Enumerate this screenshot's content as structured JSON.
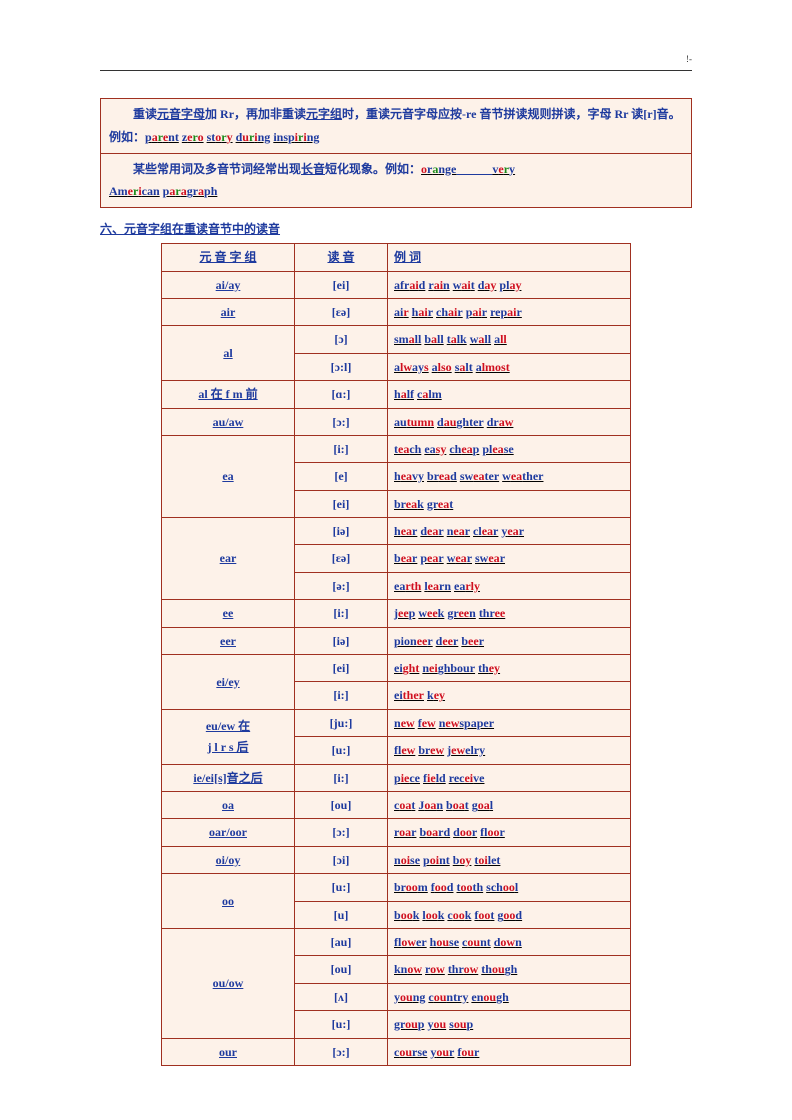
{
  "header_mark": "!-",
  "box": {
    "row1": {
      "prefix_indent": "　　",
      "t1": "重读",
      "t2": "元音字母",
      "t3": "加 Rr，再加非重读",
      "t4": "元字组",
      "t5": "时，重读元音字母应按-re 音节拼读规则拼读，字母 Rr 读[r]音。例如：",
      "ex": [
        [
          "p",
          "a",
          "r",
          "e",
          "nt"
        ],
        [
          " "
        ],
        [
          "z",
          "e",
          "r",
          "o"
        ],
        [
          " "
        ],
        [
          "st",
          "o",
          "r",
          "y"
        ],
        [
          " "
        ],
        [
          "d",
          "u",
          "r",
          "i",
          "ng"
        ],
        [
          " "
        ],
        [
          "insp",
          "i",
          "r",
          "i",
          "ng"
        ]
      ]
    },
    "row2": {
      "prefix_indent": "　　",
      "t1": "某些常用词及多音节词经常出现",
      "t2": "长音",
      "t3": "短化现象。例如：",
      "ex": [
        [
          "o",
          "r",
          "a",
          "nge"
        ],
        [
          "　　　"
        ],
        [
          "v",
          "e",
          "r",
          "y"
        ]
      ],
      "ex2": [
        [
          "Am",
          "e",
          "r",
          "i",
          "can"
        ],
        [
          " "
        ],
        [
          "p",
          "a",
          "r",
          "a",
          "gr",
          "a",
          "ph"
        ]
      ]
    }
  },
  "section_title": "六、元音字组在重读音节中的读音",
  "table": {
    "headers": [
      "元 音 字 组",
      "读 音",
      "例 词"
    ],
    "rows": [
      {
        "g": "ai/ay",
        "p": "[ei]",
        "ex": [
          [
            "afr",
            "ai",
            "d"
          ],
          [
            " "
          ],
          [
            "r",
            "ai",
            "n"
          ],
          [
            " "
          ],
          [
            "w",
            "ai",
            "t"
          ],
          [
            " "
          ],
          [
            "d",
            "ay"
          ],
          [
            " "
          ],
          [
            "pl",
            "ay"
          ]
        ]
      },
      {
        "g": "air",
        "p": "[ɛə]",
        "ex": [
          [
            "ai",
            "r"
          ],
          [
            " "
          ],
          [
            "h",
            "ai",
            "r"
          ],
          [
            " "
          ],
          [
            "ch",
            "ai",
            "r"
          ],
          [
            " "
          ],
          [
            "p",
            "ai",
            "r"
          ],
          [
            " "
          ],
          [
            "rep",
            "ai",
            "r"
          ]
        ]
      },
      {
        "g": "al",
        "rowspan": 2,
        "p": "[ɔ]",
        "ex": [
          [
            "sm",
            "a",
            "ll"
          ],
          [
            " "
          ],
          [
            "b",
            "a",
            "ll"
          ],
          [
            " "
          ],
          [
            "t",
            "a",
            "lk"
          ],
          [
            " "
          ],
          [
            "w",
            "a",
            "ll"
          ],
          [
            " "
          ],
          [
            "a",
            "ll"
          ]
        ]
      },
      {
        "sub": true,
        "p": "[ɔ:l]",
        "ex": [
          [
            "a",
            "lw",
            "ay",
            "s"
          ],
          [
            " "
          ],
          [
            "a",
            "lso"
          ],
          [
            " "
          ],
          [
            "s",
            "a",
            "lt"
          ],
          [
            " "
          ],
          [
            "a",
            "lmost"
          ]
        ]
      },
      {
        "g": "al 在 f m 前",
        "p": "[ɑ:]",
        "ex": [
          [
            "h",
            "a",
            "lf"
          ],
          [
            " "
          ],
          [
            "c",
            "a",
            "lm"
          ]
        ]
      },
      {
        "g": "au/aw",
        "p": "[ɔ:]",
        "ex": [
          [
            "au",
            "tumn"
          ],
          [
            " "
          ],
          [
            "d",
            "au",
            "ghter"
          ],
          [
            " "
          ],
          [
            "dr",
            "aw"
          ]
        ]
      },
      {
        "g": "ea",
        "rowspan": 3,
        "p": "[i:]",
        "ex": [
          [
            "t",
            "ea",
            "ch"
          ],
          [
            " "
          ],
          [
            "ea",
            "sy"
          ],
          [
            " "
          ],
          [
            "ch",
            "ea",
            "p"
          ],
          [
            " "
          ],
          [
            "pl",
            "ea",
            "se"
          ]
        ]
      },
      {
        "sub": true,
        "p": "[e]",
        "ex": [
          [
            "h",
            "ea",
            "vy"
          ],
          [
            " "
          ],
          [
            "br",
            "ea",
            "d"
          ],
          [
            " "
          ],
          [
            "sw",
            "ea",
            "ter"
          ],
          [
            " "
          ],
          [
            "w",
            "ea",
            "ther"
          ]
        ]
      },
      {
        "sub": true,
        "p": "[ei]",
        "ex": [
          [
            "br",
            "ea",
            "k"
          ],
          [
            " "
          ],
          [
            "gr",
            "ea",
            "t"
          ]
        ]
      },
      {
        "g": "ear",
        "rowspan": 3,
        "p": "[iə]",
        "ex": [
          [
            "h",
            "ea",
            "r"
          ],
          [
            " "
          ],
          [
            "d",
            "ea",
            "r"
          ],
          [
            " "
          ],
          [
            "n",
            "ea",
            "r"
          ],
          [
            " "
          ],
          [
            "cl",
            "ea",
            "r"
          ],
          [
            " "
          ],
          [
            "y",
            "ea",
            "r"
          ]
        ]
      },
      {
        "sub": true,
        "p": "[ɛə]",
        "ex": [
          [
            "b",
            "ea",
            "r"
          ],
          [
            " "
          ],
          [
            "p",
            "ea",
            "r"
          ],
          [
            " "
          ],
          [
            "w",
            "ea",
            "r"
          ],
          [
            " "
          ],
          [
            "sw",
            "ea",
            "r"
          ]
        ]
      },
      {
        "sub": true,
        "p": "[ə:]",
        "ex": [
          [
            "ea",
            "rth"
          ],
          [
            " "
          ],
          [
            "l",
            "ea",
            "rn"
          ],
          [
            " "
          ],
          [
            "ea",
            "rly"
          ]
        ]
      },
      {
        "g": "ee",
        "p": "[i:]",
        "ex": [
          [
            "j",
            "ee",
            "p"
          ],
          [
            " "
          ],
          [
            "w",
            "ee",
            "k"
          ],
          [
            " "
          ],
          [
            "gr",
            "ee",
            "n"
          ],
          [
            " "
          ],
          [
            "thr",
            "ee"
          ]
        ]
      },
      {
        "g": "eer",
        "p": "[iə]",
        "ex": [
          [
            "pion",
            "ee",
            "r"
          ],
          [
            " "
          ],
          [
            "d",
            "ee",
            "r"
          ],
          [
            " "
          ],
          [
            "b",
            "ee",
            "r"
          ]
        ]
      },
      {
        "g": "ei/ey",
        "rowspan": 2,
        "p": "[ei]",
        "ex": [
          [
            "ei",
            "ght"
          ],
          [
            " "
          ],
          [
            "n",
            "ei",
            "ghbour"
          ],
          [
            " "
          ],
          [
            "th",
            "ey"
          ]
        ]
      },
      {
        "sub": true,
        "p": "[i:]",
        "ex": [
          [
            "ei",
            "ther"
          ],
          [
            " "
          ],
          [
            "k",
            "ey"
          ]
        ]
      },
      {
        "g": "eu/ew 在",
        "g2": "j l r s 后",
        "rowspan": 2,
        "p": "[ju:]",
        "ex": [
          [
            "n",
            "ew"
          ],
          [
            " "
          ],
          [
            "f",
            "ew"
          ],
          [
            " "
          ],
          [
            "n",
            "ew",
            "spaper"
          ]
        ]
      },
      {
        "sub": true,
        "p": "[u:]",
        "ex": [
          [
            "fl",
            "ew"
          ],
          [
            " "
          ],
          [
            "br",
            "ew"
          ],
          [
            " "
          ],
          [
            "j",
            "ew",
            "elry"
          ]
        ]
      },
      {
        "g": "ie/ei[s]音之后",
        "p": "[i:]",
        "ex": [
          [
            "p",
            "ie",
            "ce"
          ],
          [
            " "
          ],
          [
            "f",
            "ie",
            "ld"
          ],
          [
            " "
          ],
          [
            "rec",
            "ei",
            "ve"
          ]
        ]
      },
      {
        "g": "oa",
        "p": "[ou]",
        "ex": [
          [
            "c",
            "oa",
            "t"
          ],
          [
            " "
          ],
          [
            "J",
            "oa",
            "n"
          ],
          [
            " "
          ],
          [
            "b",
            "oa",
            "t"
          ],
          [
            " "
          ],
          [
            "g",
            "oa",
            "l"
          ]
        ]
      },
      {
        "g": "oar/oor",
        "p": "[ɔ:]",
        "ex": [
          [
            "r",
            "oa",
            "r"
          ],
          [
            " "
          ],
          [
            "b",
            "oa",
            "rd"
          ],
          [
            " "
          ],
          [
            "d",
            "oo",
            "r"
          ],
          [
            " "
          ],
          [
            "fl",
            "oo",
            "r"
          ]
        ]
      },
      {
        "g": "oi/oy",
        "p": "[ɔi]",
        "ex": [
          [
            "n",
            "oi",
            "se"
          ],
          [
            " "
          ],
          [
            "p",
            "oi",
            "nt"
          ],
          [
            " "
          ],
          [
            "b",
            "oy"
          ],
          [
            " "
          ],
          [
            "t",
            "oi",
            "let"
          ]
        ]
      },
      {
        "g": "oo",
        "rowspan": 2,
        "p": "[u:]",
        "ex": [
          [
            "br",
            "oo",
            "m"
          ],
          [
            " "
          ],
          [
            "f",
            "oo",
            "d"
          ],
          [
            " "
          ],
          [
            "t",
            "oo",
            "th"
          ],
          [
            " "
          ],
          [
            "sch",
            "oo",
            "l"
          ]
        ]
      },
      {
        "sub": true,
        "p": "[u]",
        "ex": [
          [
            "b",
            "oo",
            "k"
          ],
          [
            " "
          ],
          [
            "l",
            "oo",
            "k"
          ],
          [
            " "
          ],
          [
            "c",
            "oo",
            "k"
          ],
          [
            " "
          ],
          [
            "f",
            "oo",
            "t"
          ],
          [
            " "
          ],
          [
            "g",
            "oo",
            "d"
          ]
        ]
      },
      {
        "g": "ou/ow",
        "rowspan": 4,
        "p": "[au]",
        "ex": [
          [
            "fl",
            "ow",
            "er"
          ],
          [
            " "
          ],
          [
            "h",
            "ou",
            "se"
          ],
          [
            " "
          ],
          [
            "c",
            "ou",
            "nt"
          ],
          [
            " "
          ],
          [
            "d",
            "ow",
            "n"
          ]
        ]
      },
      {
        "sub": true,
        "p": "[ou]",
        "ex": [
          [
            "kn",
            "ow"
          ],
          [
            " "
          ],
          [
            "r",
            "ow"
          ],
          [
            " "
          ],
          [
            "thr",
            "ow"
          ],
          [
            " "
          ],
          [
            "th",
            "ou",
            "gh"
          ]
        ]
      },
      {
        "sub": true,
        "p": "[ʌ]",
        "ex": [
          [
            "y",
            "ou",
            "ng"
          ],
          [
            " "
          ],
          [
            "c",
            "ou",
            "ntry"
          ],
          [
            " "
          ],
          [
            "en",
            "ou",
            "gh"
          ]
        ]
      },
      {
        "sub": true,
        "p": "[u:]",
        "ex": [
          [
            "gr",
            "ou",
            "p"
          ],
          [
            " "
          ],
          [
            "y",
            "ou"
          ],
          [
            " "
          ],
          [
            "s",
            "ou",
            "p"
          ]
        ]
      },
      {
        "g": "our",
        "p": "[ɔ:]",
        "ex": [
          [
            "c",
            "ou",
            "rse"
          ],
          [
            " "
          ],
          [
            "y",
            "ou",
            "r"
          ],
          [
            " "
          ],
          [
            "f",
            "ou",
            "r"
          ]
        ]
      }
    ]
  },
  "colors": {
    "blue": "#1e3a9e",
    "red": "#d01020",
    "green": "#1a8a1a",
    "border": "#a03020",
    "bg": "#fdf2e9"
  }
}
